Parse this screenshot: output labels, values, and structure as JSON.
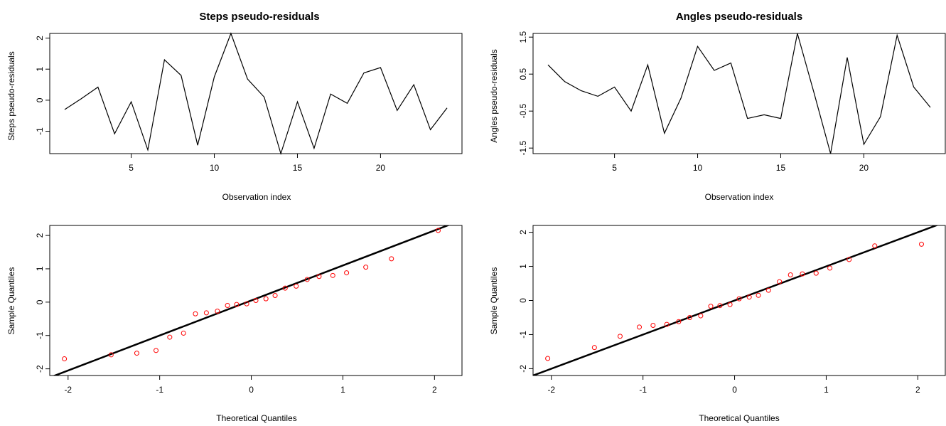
{
  "chart_data": [
    {
      "type": "line",
      "title": "Steps pseudo-residuals",
      "xlabel": "Observation index",
      "ylabel": "Steps pseudo-residuals",
      "x": [
        1,
        2,
        3,
        4,
        5,
        6,
        7,
        8,
        9,
        10,
        11,
        12,
        13,
        14,
        15,
        16,
        17,
        18,
        19,
        20,
        21,
        22,
        23,
        24
      ],
      "values": [
        -0.3,
        0.05,
        0.42,
        -1.08,
        -0.05,
        -1.6,
        1.3,
        0.8,
        -1.45,
        0.75,
        2.15,
        0.68,
        0.1,
        -1.72,
        -0.05,
        -1.55,
        0.2,
        -0.1,
        0.88,
        1.05,
        -0.33,
        0.5,
        -0.95,
        -0.25
      ],
      "xticks": [
        "5",
        "10",
        "15",
        "20"
      ],
      "yticks": [
        "-1",
        "0",
        "1",
        "2"
      ],
      "xlim": [
        0.1,
        24.9
      ],
      "ylim": [
        -1.72,
        2.15
      ]
    },
    {
      "type": "line",
      "title": "Angles pseudo-residuals",
      "xlabel": "Observation index",
      "ylabel": "Angles pseudo-residuals",
      "x": [
        1,
        2,
        3,
        4,
        5,
        6,
        7,
        8,
        9,
        10,
        11,
        12,
        13,
        14,
        15,
        16,
        17,
        18,
        19,
        20,
        21,
        22,
        23,
        24
      ],
      "values": [
        0.75,
        0.3,
        0.05,
        -0.1,
        0.15,
        -0.5,
        0.75,
        -1.1,
        -0.15,
        1.25,
        0.6,
        0.8,
        -0.7,
        -0.6,
        -0.7,
        1.6,
        0.0,
        -1.65,
        0.95,
        -1.4,
        -0.65,
        1.55,
        0.15,
        -0.4
      ],
      "xticks": [
        "5",
        "10",
        "15",
        "20"
      ],
      "yticks": [
        "-1.5",
        "-0.5",
        "0.5",
        "1.5"
      ],
      "xlim": [
        0.1,
        24.9
      ],
      "ylim": [
        -1.65,
        1.6
      ]
    },
    {
      "type": "scatter",
      "title": "",
      "xlabel": "Theoretical Quantiles",
      "ylabel": "Sample Quantiles",
      "points": [
        [
          -2.04,
          -1.7
        ],
        [
          -1.53,
          -1.58
        ],
        [
          -1.25,
          -1.53
        ],
        [
          -1.04,
          -1.45
        ],
        [
          -0.89,
          -1.05
        ],
        [
          -0.74,
          -0.93
        ],
        [
          -0.61,
          -0.35
        ],
        [
          -0.49,
          -0.32
        ],
        [
          -0.37,
          -0.27
        ],
        [
          -0.26,
          -0.1
        ],
        [
          -0.16,
          -0.07
        ],
        [
          -0.05,
          -0.05
        ],
        [
          0.05,
          0.05
        ],
        [
          0.16,
          0.1
        ],
        [
          0.26,
          0.2
        ],
        [
          0.37,
          0.42
        ],
        [
          0.49,
          0.48
        ],
        [
          0.61,
          0.68
        ],
        [
          0.74,
          0.77
        ],
        [
          0.89,
          0.8
        ],
        [
          1.04,
          0.88
        ],
        [
          1.25,
          1.05
        ],
        [
          1.53,
          1.3
        ],
        [
          2.04,
          2.15
        ]
      ],
      "reference_line": {
        "intercept": 0.05,
        "slope": 1.05
      },
      "xticks": [
        "-2",
        "-1",
        "0",
        "1",
        "2"
      ],
      "yticks": [
        "-2",
        "-1",
        "0",
        "1",
        "2"
      ],
      "xlim": [
        -2.2,
        2.3
      ],
      "ylim": [
        -2.2,
        2.3
      ],
      "point_color": "#ff0000"
    },
    {
      "type": "scatter",
      "title": "",
      "xlabel": "Theoretical Quantiles",
      "ylabel": "Sample Quantiles",
      "points": [
        [
          -2.04,
          -1.7
        ],
        [
          -1.53,
          -1.38
        ],
        [
          -1.25,
          -1.05
        ],
        [
          -1.04,
          -0.78
        ],
        [
          -0.89,
          -0.73
        ],
        [
          -0.74,
          -0.7
        ],
        [
          -0.61,
          -0.62
        ],
        [
          -0.49,
          -0.5
        ],
        [
          -0.37,
          -0.45
        ],
        [
          -0.26,
          -0.17
        ],
        [
          -0.16,
          -0.15
        ],
        [
          -0.05,
          -0.12
        ],
        [
          0.05,
          0.05
        ],
        [
          0.16,
          0.1
        ],
        [
          0.26,
          0.15
        ],
        [
          0.37,
          0.3
        ],
        [
          0.49,
          0.55
        ],
        [
          0.61,
          0.75
        ],
        [
          0.74,
          0.78
        ],
        [
          0.89,
          0.8
        ],
        [
          1.04,
          0.95
        ],
        [
          1.25,
          1.2
        ],
        [
          1.53,
          1.6
        ],
        [
          2.04,
          1.65
        ]
      ],
      "reference_line": {
        "intercept": 0.0,
        "slope": 1.0
      },
      "xticks": [
        "-2",
        "-1",
        "0",
        "1",
        "2"
      ],
      "yticks": [
        "-2",
        "-1",
        "0",
        "1",
        "2"
      ],
      "xlim": [
        -2.2,
        2.3
      ],
      "ylim": [
        -2.2,
        2.2
      ],
      "point_color": "#ff0000"
    }
  ]
}
